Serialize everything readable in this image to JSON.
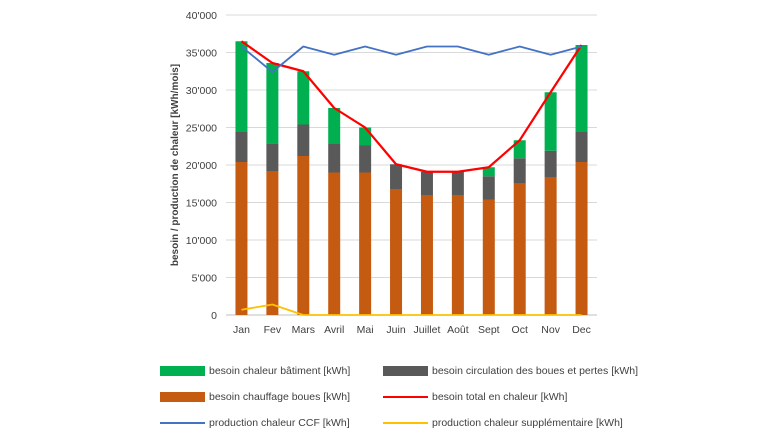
{
  "chart_data": {
    "type": "bar",
    "title": "",
    "xlabel": "",
    "ylabel": "besoin / production de chaleur [kWh/mois]",
    "ylim": [
      0,
      40000
    ],
    "yticks": [
      "0",
      "5'000",
      "10'000",
      "15'000",
      "20'000",
      "25'000",
      "30'000",
      "35'000",
      "40'000"
    ],
    "ytick_values": [
      0,
      5000,
      10000,
      15000,
      20000,
      25000,
      30000,
      35000,
      40000
    ],
    "grid": true,
    "legend_position": "bottom",
    "categories": [
      "Jan",
      "Fev",
      "Mars",
      "Avril",
      "Mai",
      "Juin",
      "Juillet",
      "Août",
      "Sept",
      "Oct",
      "Nov",
      "Dec"
    ],
    "stacked_series": [
      {
        "name": "besoin chauffage boues [kWh]",
        "color": "#c55a11",
        "values": [
          20400,
          19100,
          21200,
          19000,
          19000,
          16800,
          15900,
          15900,
          15400,
          17500,
          18300,
          20400
        ]
      },
      {
        "name": "besoin circulation des boues et pertes [kWh]",
        "color": "#595959",
        "values": [
          4000,
          3800,
          4200,
          3800,
          3600,
          3300,
          3200,
          3200,
          3100,
          3400,
          3600,
          4000
        ]
      },
      {
        "name": "besoin chaleur bâtiment [kWh]",
        "color": "#00b050",
        "values": [
          12100,
          10700,
          7100,
          4800,
          2400,
          0,
          0,
          0,
          1200,
          2400,
          7800,
          11600
        ]
      }
    ],
    "line_series": [
      {
        "name": "besoin total en chaleur [kWh]",
        "color": "#ff0000",
        "values": [
          36500,
          33600,
          32500,
          27600,
          25000,
          20100,
          19100,
          19100,
          19700,
          23300,
          29700,
          36000
        ]
      },
      {
        "name": "production chaleur CCF [kWh]",
        "color": "#4472c4",
        "values": [
          35800,
          32400,
          35800,
          34700,
          35800,
          34700,
          35800,
          35800,
          34700,
          35800,
          34700,
          35800
        ]
      },
      {
        "name": "production chaleur supplémentaire [kWh]",
        "color": "#ffc000",
        "values": [
          700,
          1400,
          0,
          0,
          0,
          0,
          0,
          0,
          0,
          0,
          0,
          0
        ]
      }
    ],
    "legend_order": [
      "besoin chaleur bâtiment [kWh]",
      "besoin circulation des boues et pertes [kWh]",
      "besoin chauffage boues [kWh]",
      "besoin total en chaleur [kWh]",
      "production chaleur CCF [kWh]",
      "production chaleur supplémentaire [kWh]"
    ]
  }
}
